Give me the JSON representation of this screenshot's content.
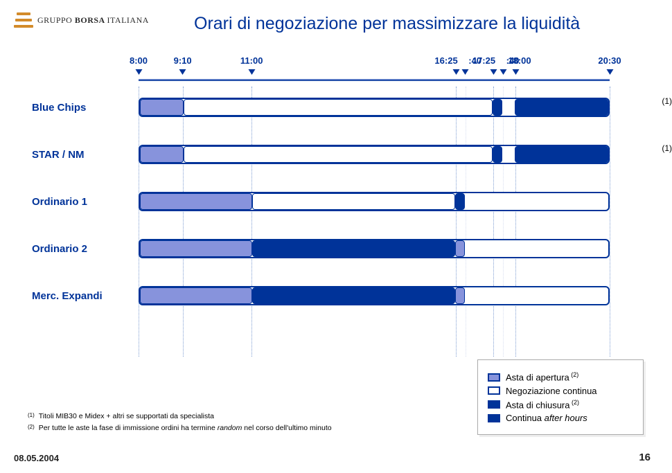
{
  "logo_text_1": "GRUPPO",
  "logo_text_2": "BORSA",
  "logo_text_3": "ITALIANA",
  "title": "Orari di negoziazione per massimizzare la liquidità",
  "title_color": "#003399",
  "colors": {
    "auction_open": "#8793dc",
    "continuous_border": "#003399",
    "auction_close": "#003399",
    "after_hours": "#003399"
  },
  "grid": {
    "major_color": "#7e9dd2",
    "minor_color": "#d7def0"
  },
  "timeline": {
    "start": 8.0,
    "end": 20.5,
    "ticks": [
      {
        "label": "8:00",
        "value": 8.0,
        "major": true,
        "offset": 0
      },
      {
        "label": "9:10",
        "value": 9.17,
        "major": true,
        "offset": 0
      },
      {
        "label": "11:00",
        "value": 11.0,
        "major": true,
        "offset": 0
      },
      {
        "label": "16:25",
        "value": 16.42,
        "major": true,
        "offset": -14
      },
      {
        "label": ":40",
        "value": 16.67,
        "major": false,
        "offset": 14
      },
      {
        "label": "17:25",
        "value": 17.42,
        "major": true,
        "offset": -14
      },
      {
        "label": ":40",
        "value": 17.67,
        "major": false,
        "offset": 14
      },
      {
        "label": "18:00",
        "value": 18.0,
        "major": true,
        "offset": 6
      },
      {
        "label": "20:30",
        "value": 20.5,
        "major": true,
        "offset": 0
      }
    ]
  },
  "rows": [
    {
      "label": "Blue Chips",
      "label_color": "#003399",
      "note": "(1)",
      "segments": [
        {
          "from": 8.0,
          "to": 9.17,
          "fill": "#8793dc",
          "border": "#003399"
        },
        {
          "from": 9.17,
          "to": 17.42,
          "fill": "#ffffff",
          "border": "#003399"
        },
        {
          "from": 17.42,
          "to": 17.67,
          "fill": "#003399",
          "border": "#003399"
        },
        {
          "from": 18.0,
          "to": 20.5,
          "fill": "#003399",
          "border": "#003399"
        }
      ]
    },
    {
      "label": "STAR / NM",
      "label_color": "#003399",
      "note": "(1)",
      "segments": [
        {
          "from": 8.0,
          "to": 9.17,
          "fill": "#8793dc",
          "border": "#003399"
        },
        {
          "from": 9.17,
          "to": 17.42,
          "fill": "#ffffff",
          "border": "#003399"
        },
        {
          "from": 17.42,
          "to": 17.67,
          "fill": "#003399",
          "border": "#003399"
        },
        {
          "from": 18.0,
          "to": 20.5,
          "fill": "#003399",
          "border": "#003399"
        }
      ]
    },
    {
      "label": "Ordinario 1",
      "label_color": "#003399",
      "note": "",
      "segments": [
        {
          "from": 8.0,
          "to": 11.0,
          "fill": "#8793dc",
          "border": "#003399"
        },
        {
          "from": 11.0,
          "to": 16.42,
          "fill": "#ffffff",
          "border": "#003399"
        },
        {
          "from": 16.42,
          "to": 16.67,
          "fill": "#003399",
          "border": "#003399"
        }
      ]
    },
    {
      "label": "Ordinario 2",
      "label_color": "#003399",
      "note": "",
      "segments": [
        {
          "from": 8.0,
          "to": 11.0,
          "fill": "#8793dc",
          "border": "#003399"
        },
        {
          "from": 11.0,
          "to": 16.42,
          "fill": "#003399",
          "border": "#003399"
        },
        {
          "from": 16.42,
          "to": 16.67,
          "fill": "#8793dc",
          "border": "#003399"
        }
      ]
    },
    {
      "label": "Merc. Expandi",
      "label_color": "#003399",
      "note": "",
      "segments": [
        {
          "from": 8.0,
          "to": 11.0,
          "fill": "#8793dc",
          "border": "#003399"
        },
        {
          "from": 11.0,
          "to": 16.42,
          "fill": "#003399",
          "border": "#003399"
        },
        {
          "from": 16.42,
          "to": 16.67,
          "fill": "#8793dc",
          "border": "#003399"
        }
      ]
    }
  ],
  "legend": {
    "items": [
      {
        "label": "Asta di apertura",
        "sup": "(2)",
        "fill": "#8793dc",
        "border": "#003399"
      },
      {
        "label": "Negoziazione continua",
        "sup": "",
        "fill": "#ffffff",
        "border": "#003399"
      },
      {
        "label": "Asta di chiusura",
        "sup": "(2)",
        "fill": "#003399",
        "border": "#003399"
      },
      {
        "label": "Continua after hours",
        "sup": "",
        "fill": "#003399",
        "border": "#003399",
        "italic_word": "after hours"
      }
    ]
  },
  "footnotes": [
    {
      "n": "(1)",
      "text": "Titoli MIB30 e Midex + altri se supportati da specialista"
    },
    {
      "n": "(2)",
      "text": "Per tutte le aste la fase di immissione ordini ha termine ",
      "italic": "random",
      "tail": " nel corso dell'ultimo minuto"
    }
  ],
  "footer_date": "08.05.2004",
  "footer_page": "16"
}
